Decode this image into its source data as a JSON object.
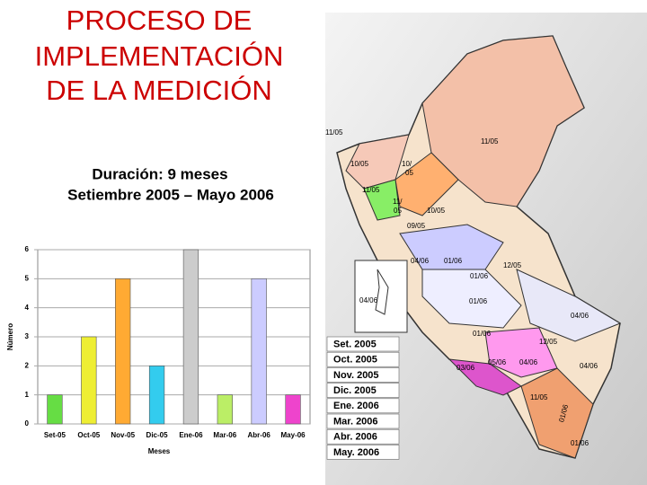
{
  "header": {
    "title_lines": [
      "PROCESO DE",
      "IMPLEMENTACIÓN",
      "DE LA MEDICIÓN"
    ],
    "subtitle_lines": [
      "Duración: 9 meses",
      "Setiembre 2005 – Mayo 2006"
    ]
  },
  "chart_data": {
    "type": "bar",
    "x_label": "Meses",
    "y_label": "Número",
    "categories": [
      "Set-05",
      "Oct-05",
      "Nov-05",
      "Dic-05",
      "Ene-06",
      "Mar-06",
      "Abr-06",
      "May-06"
    ],
    "values": [
      1,
      3,
      5,
      2,
      6,
      1,
      5,
      1
    ],
    "colors": [
      "#66dd44",
      "#eeee33",
      "#ffaa33",
      "#33ccee",
      "#cccccc",
      "#bbee66",
      "#ccccff",
      "#ee44cc"
    ],
    "ylim": [
      0,
      6
    ],
    "yticks": [
      0,
      1,
      2,
      3,
      4,
      5,
      6
    ],
    "grid": true
  },
  "map": {
    "labels": [
      "11/05",
      "11/05",
      "10/05",
      "10/",
      "05",
      "11/05",
      "11/",
      "05",
      "10/05",
      "09/05",
      "04/06",
      "01/06",
      "12/05",
      "01/06",
      "04/06",
      "01/06",
      "04/06",
      "01/06",
      "12/05",
      "03/06",
      "05/06",
      "04/06",
      "04/06",
      "11/05",
      "01/06",
      "01/06"
    ],
    "legend": [
      "Set. 2005",
      "Oct. 2005",
      "Nov. 2005",
      "Dic. 2005",
      "Ene. 2006",
      "Mar. 2006",
      "Abr. 2006",
      "May. 2006"
    ]
  }
}
